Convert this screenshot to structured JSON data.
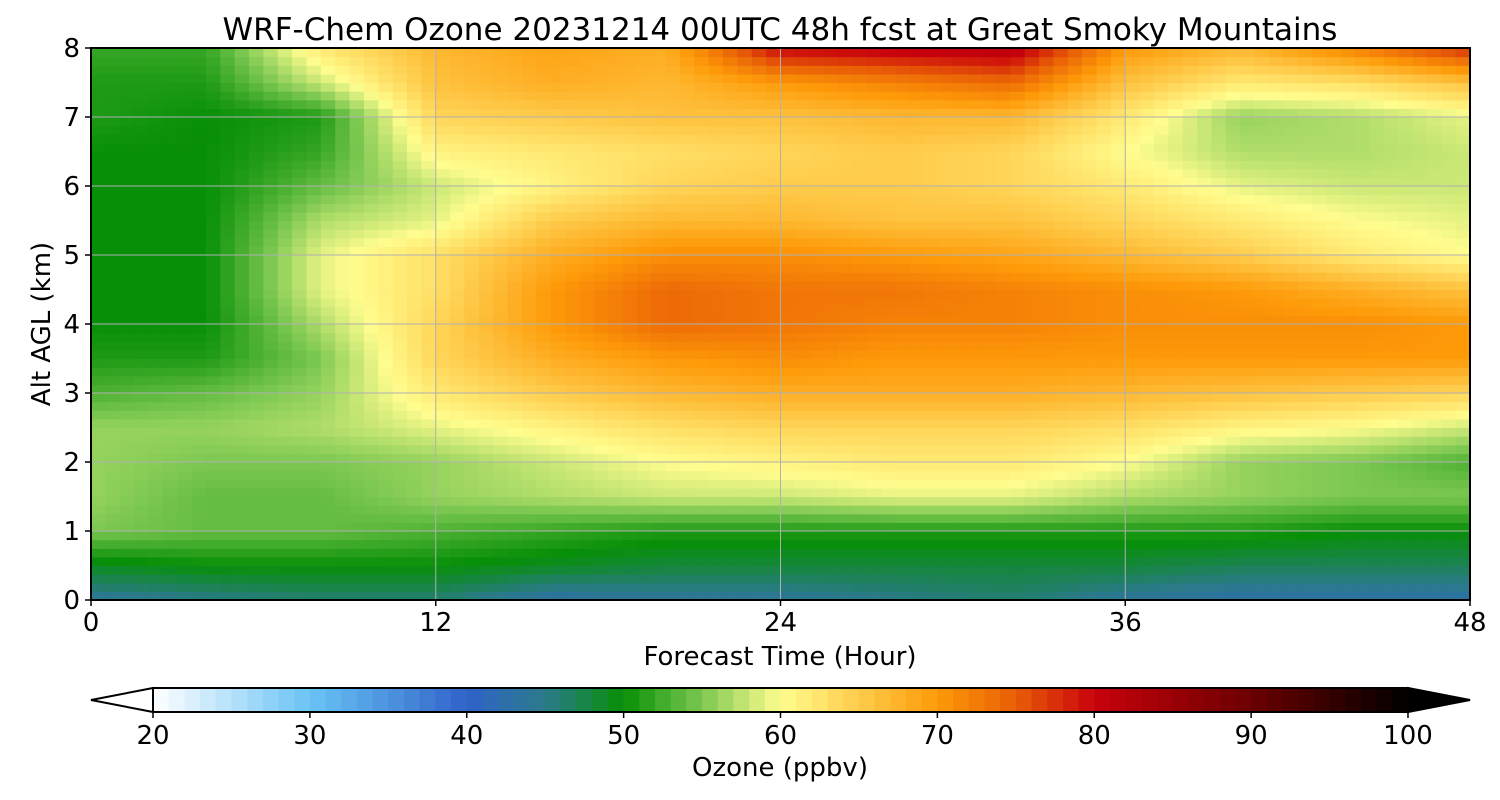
{
  "chart_data": {
    "type": "heatmap",
    "title": "WRF-Chem Ozone  20231214 00UTC 48h fcst at Great Smoky Mountains",
    "xlabel": "Forecast Time (Hour)",
    "ylabel": "Alt AGL (km)",
    "xlim": [
      0,
      48
    ],
    "ylim": [
      0,
      8
    ],
    "grid": true,
    "x_ticks": [
      0,
      12,
      24,
      36,
      48
    ],
    "y_ticks": [
      0,
      1,
      2,
      3,
      4,
      5,
      6,
      7,
      8
    ],
    "z_label": "Ozone  (ppbv)",
    "z_range": [
      20,
      100
    ],
    "colorbar_ticks": [
      20,
      30,
      40,
      50,
      60,
      70,
      80,
      90,
      100
    ],
    "colorbar_extend": "both",
    "colorbar_stops": [
      {
        "v": 20,
        "c": "#ffffff"
      },
      {
        "v": 30,
        "c": "#6ac3f5"
      },
      {
        "v": 40,
        "c": "#2f63c8"
      },
      {
        "v": 45,
        "c": "#2a7a8a"
      },
      {
        "v": 50,
        "c": "#078f07"
      },
      {
        "v": 55,
        "c": "#7cc851"
      },
      {
        "v": 60,
        "c": "#fffd8e"
      },
      {
        "v": 70,
        "c": "#fe9a08"
      },
      {
        "v": 75,
        "c": "#e85e06"
      },
      {
        "v": 80,
        "c": "#c9020c"
      },
      {
        "v": 90,
        "c": "#6b0000"
      },
      {
        "v": 100,
        "c": "#000000"
      }
    ],
    "x": [
      0,
      4,
      8,
      12,
      16,
      20,
      24,
      28,
      32,
      36,
      40,
      44,
      48
    ],
    "y": [
      0,
      0.5,
      1,
      1.5,
      2,
      2.5,
      3,
      3.5,
      4,
      4.5,
      5,
      5.5,
      6,
      6.5,
      7,
      7.5,
      8
    ],
    "values": [
      [
        44,
        45,
        46,
        46,
        43,
        44,
        44,
        45,
        46,
        44,
        43,
        43,
        43
      ],
      [
        49,
        50,
        50,
        50,
        49,
        48,
        48,
        48,
        48,
        48,
        47,
        47,
        47
      ],
      [
        55,
        54,
        54,
        53,
        52,
        51,
        51,
        51,
        51,
        51,
        51,
        50,
        50
      ],
      [
        56,
        54,
        54,
        56,
        57,
        58,
        58,
        59,
        59,
        57,
        56,
        55,
        55
      ],
      [
        56,
        55,
        55,
        56,
        58,
        60,
        61,
        62,
        62,
        60,
        56,
        55,
        53
      ],
      [
        56,
        56,
        57,
        59,
        61,
        63,
        64,
        64,
        64,
        63,
        61,
        60,
        58
      ],
      [
        53,
        54,
        56,
        62,
        65,
        67,
        68,
        68,
        68,
        67,
        66,
        65,
        64
      ],
      [
        51,
        51,
        55,
        64,
        68,
        70,
        71,
        70,
        70,
        70,
        70,
        70,
        70
      ],
      [
        50,
        50,
        57,
        64,
        70,
        74,
        73,
        72,
        72,
        71,
        71,
        71,
        70
      ],
      [
        50,
        50,
        59,
        63,
        70,
        74,
        73,
        73,
        72,
        71,
        70,
        68,
        66
      ],
      [
        50,
        50,
        59,
        63,
        68,
        71,
        71,
        70,
        69,
        67,
        65,
        62,
        60
      ],
      [
        50,
        50,
        57,
        59,
        65,
        67,
        67,
        66,
        66,
        64,
        62,
        60,
        59
      ],
      [
        50,
        50,
        54,
        58,
        61,
        64,
        65,
        65,
        64,
        62,
        59,
        58,
        58
      ],
      [
        50,
        50,
        52,
        61,
        62,
        63,
        64,
        65,
        64,
        60,
        57,
        57,
        58
      ],
      [
        51,
        50,
        51,
        64,
        65,
        66,
        66,
        67,
        67,
        62,
        56,
        57,
        59
      ],
      [
        51,
        51,
        58,
        66,
        68,
        67,
        70,
        72,
        74,
        66,
        62,
        63,
        66
      ],
      [
        52,
        52,
        62,
        67,
        69,
        68,
        80,
        81,
        82,
        70,
        67,
        72,
        78
      ]
    ]
  }
}
